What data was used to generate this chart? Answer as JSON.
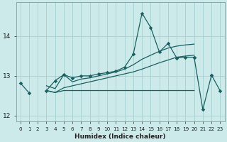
{
  "xlabel": "Humidex (Indice chaleur)",
  "bg_color": "#cceaea",
  "grid_color": "#aad4d4",
  "line_color": "#1a6060",
  "x_values": [
    0,
    1,
    2,
    3,
    4,
    5,
    6,
    7,
    8,
    9,
    10,
    11,
    12,
    13,
    14,
    15,
    16,
    17,
    18,
    19,
    20,
    21,
    22,
    23
  ],
  "line_main": [
    12.82,
    12.57,
    null,
    12.63,
    12.88,
    13.03,
    12.95,
    13.0,
    13.0,
    13.05,
    13.08,
    13.12,
    13.22,
    13.55,
    14.58,
    14.22,
    13.6,
    13.82,
    13.45,
    13.47,
    13.47,
    null,
    13.02,
    null
  ],
  "line_flat": [
    null,
    null,
    null,
    12.63,
    12.58,
    12.63,
    12.63,
    12.63,
    12.63,
    12.63,
    12.63,
    12.63,
    12.63,
    12.63,
    12.63,
    12.63,
    12.63,
    12.63,
    12.63,
    12.63,
    12.63,
    null,
    null,
    null
  ],
  "line_trend_low": [
    null,
    null,
    null,
    12.63,
    12.58,
    12.7,
    12.75,
    12.8,
    12.85,
    12.9,
    12.95,
    13.0,
    13.05,
    13.1,
    13.17,
    13.25,
    13.33,
    13.4,
    13.47,
    13.5,
    13.52,
    null,
    null,
    null
  ],
  "line_trend_high": [
    null,
    null,
    null,
    12.75,
    12.68,
    13.03,
    12.85,
    12.92,
    12.95,
    13.0,
    13.05,
    13.1,
    13.17,
    13.28,
    13.42,
    13.52,
    13.62,
    13.7,
    13.75,
    13.78,
    13.8,
    null,
    null,
    null
  ],
  "line_right": [
    null,
    null,
    null,
    null,
    null,
    null,
    null,
    null,
    null,
    null,
    null,
    null,
    null,
    null,
    null,
    null,
    null,
    null,
    null,
    null,
    13.47,
    12.15,
    13.02,
    12.62
  ],
  "ylim": [
    11.85,
    14.85
  ],
  "yticks": [
    12,
    13,
    14
  ],
  "xlim": [
    -0.5,
    23.5
  ],
  "xtick_labels": [
    "0",
    "1",
    "2",
    "3",
    "4",
    "5",
    "6",
    "7",
    "8",
    "9",
    "10",
    "11",
    "12",
    "13",
    "14",
    "15",
    "16",
    "17",
    "18",
    "19",
    "20",
    "21",
    "22",
    "23"
  ]
}
